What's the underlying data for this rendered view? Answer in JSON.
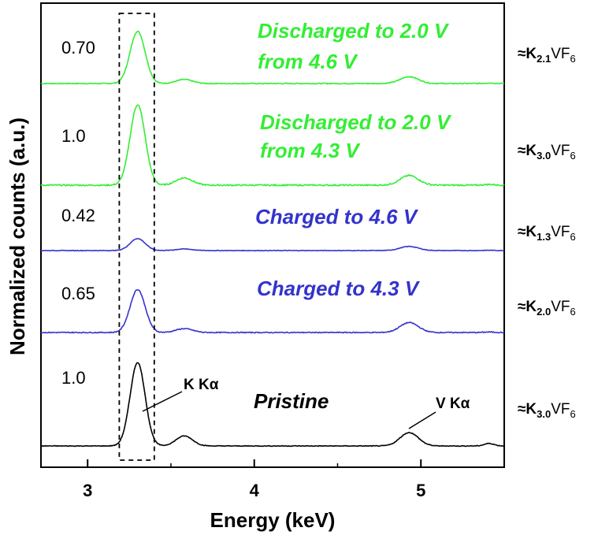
{
  "chart_data": {
    "type": "line",
    "xlabel": "Energy (keV)",
    "ylabel": "Normalized counts (a.u.)",
    "xlim": [
      2.72,
      5.5
    ],
    "x_ticks": [
      "3",
      "4",
      "5"
    ],
    "grid": false,
    "series": [
      {
        "name": "Discharged to 2.0 V from 4.6 V",
        "label_lines": [
          "Discharged to 2.0 V",
          "from 4.6 V"
        ],
        "ratio": "0.70",
        "formula": {
          "prefix": "≈K",
          "sub1": "2.1",
          "mid": "VF",
          "sub2": "6"
        },
        "color": "#33ee33",
        "k_peak": 0.92,
        "kb_peak": 0.07,
        "v_peak": 0.12,
        "noise": 0.008
      },
      {
        "name": "Discharged to 2.0 V from 4.3 V",
        "label_lines": [
          "Discharged to 2.0 V",
          "from 4.3 V"
        ],
        "ratio": "1.0",
        "formula": {
          "prefix": "≈K",
          "sub1": "3.0",
          "mid": "VF",
          "sub2": "6"
        },
        "color": "#33ee33",
        "k_peak": 1.0,
        "kb_peak": 0.09,
        "v_peak": 0.12,
        "noise": 0.008
      },
      {
        "name": "Charged to 4.6 V",
        "label_lines": [
          "Charged to 4.6 V"
        ],
        "ratio": "0.42",
        "formula": {
          "prefix": "≈K",
          "sub1": "1.3",
          "mid": "VF",
          "sub2": "6"
        },
        "color": "#3333cc",
        "k_peak": 0.38,
        "kb_peak": 0.05,
        "v_peak": 0.13,
        "noise": 0.009
      },
      {
        "name": "Charged to 4.3 V",
        "label_lines": [
          "Charged to 4.3 V"
        ],
        "ratio": "0.65",
        "formula": {
          "prefix": "≈K",
          "sub1": "2.0",
          "mid": "VF",
          "sub2": "6"
        },
        "color": "#3333cc",
        "k_peak": 0.78,
        "kb_peak": 0.07,
        "v_peak": 0.18,
        "noise": 0.008
      },
      {
        "name": "Pristine",
        "label_lines": [
          "Pristine"
        ],
        "ratio": "1.0",
        "formula": {
          "prefix": "≈K",
          "sub1": "3.0",
          "mid": "VF",
          "sub2": "6"
        },
        "color": "#000000",
        "k_peak": 1.0,
        "kb_peak": 0.12,
        "v_peak": 0.16,
        "noise": 0.004
      }
    ],
    "annotations": [
      "K Kα",
      "V Kα"
    ],
    "highlight_box": {
      "x_range": [
        3.19,
        3.4
      ],
      "style": "dashed"
    }
  }
}
